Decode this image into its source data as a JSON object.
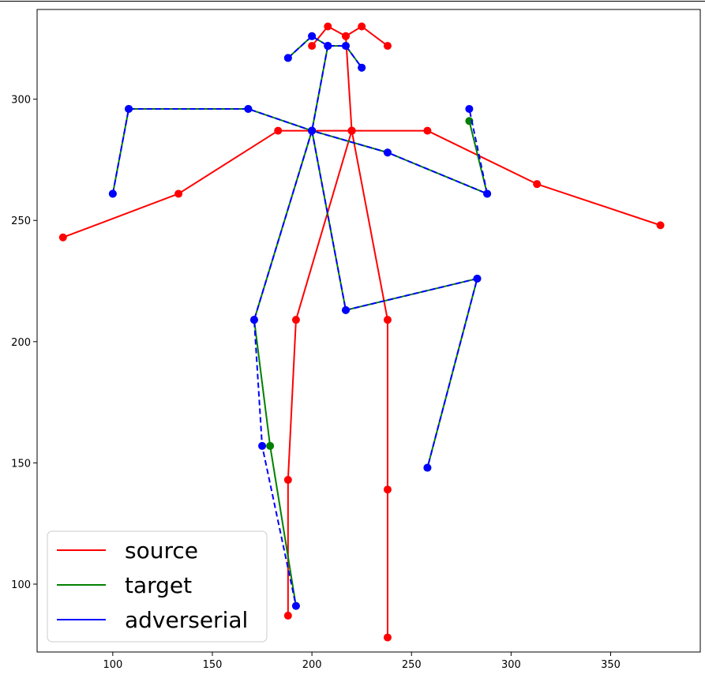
{
  "chart_data": {
    "type": "line",
    "title": "",
    "xlabel": "",
    "ylabel": "",
    "xlim": [
      62,
      395
    ],
    "ylim": [
      72,
      337
    ],
    "xticks": [
      100,
      150,
      200,
      250,
      300,
      350
    ],
    "yticks": [
      100,
      150,
      200,
      250,
      300
    ],
    "grid": false,
    "legend_position": "bottom-left",
    "series": [
      {
        "name": "source",
        "color": "#ff0000",
        "dashed": false,
        "segments": [
          [
            [
              200,
              322
            ],
            [
              208,
              330
            ],
            [
              217,
              326
            ],
            [
              225,
              330
            ],
            [
              238,
              322
            ]
          ],
          [
            [
              217,
              326
            ],
            [
              220,
              287
            ]
          ],
          [
            [
              75,
              243
            ],
            [
              133,
              261
            ],
            [
              183,
              287
            ],
            [
              220,
              287
            ],
            [
              258,
              287
            ],
            [
              313,
              265
            ],
            [
              375,
              248
            ]
          ],
          [
            [
              220,
              287
            ],
            [
              192,
              209
            ],
            [
              188,
              143
            ],
            [
              188,
              87
            ]
          ],
          [
            [
              220,
              287
            ],
            [
              238,
              209
            ],
            [
              238,
              139
            ],
            [
              238,
              78
            ]
          ]
        ]
      },
      {
        "name": "target",
        "color": "#008000",
        "dashed": false,
        "segments": [
          [
            [
              188,
              317
            ],
            [
              200,
              326
            ],
            [
              208,
              322
            ],
            [
              217,
              322
            ],
            [
              225,
              313
            ]
          ],
          [
            [
              208,
              322
            ],
            [
              200,
              287
            ]
          ],
          [
            [
              100,
              261
            ],
            [
              108,
              296
            ],
            [
              168,
              296
            ],
            [
              200,
              287
            ],
            [
              238,
              278
            ],
            [
              288,
              261
            ],
            [
              279,
              291
            ]
          ],
          [
            [
              200,
              287
            ],
            [
              171,
              209
            ],
            [
              179,
              157
            ],
            [
              192,
              91
            ]
          ],
          [
            [
              200,
              287
            ],
            [
              217,
              213
            ],
            [
              283,
              226
            ],
            [
              258,
              148
            ]
          ]
        ]
      },
      {
        "name": "adverserial",
        "color": "#0000ff",
        "dashed": true,
        "segments": [
          [
            [
              188,
              317
            ],
            [
              200,
              326
            ],
            [
              208,
              322
            ],
            [
              217,
              322
            ],
            [
              225,
              313
            ]
          ],
          [
            [
              208,
              322
            ],
            [
              200,
              287
            ]
          ],
          [
            [
              100,
              261
            ],
            [
              108,
              296
            ],
            [
              168,
              296
            ],
            [
              200,
              287
            ],
            [
              238,
              278
            ],
            [
              288,
              261
            ],
            [
              279,
              296
            ]
          ],
          [
            [
              200,
              287
            ],
            [
              171,
              209
            ],
            [
              175,
              157
            ],
            [
              192,
              91
            ]
          ],
          [
            [
              200,
              287
            ],
            [
              217,
              213
            ],
            [
              283,
              226
            ],
            [
              258,
              148
            ]
          ]
        ]
      }
    ]
  },
  "legend": {
    "items": [
      "source",
      "target",
      "adverserial"
    ],
    "colors": [
      "#ff0000",
      "#008000",
      "#0000ff"
    ]
  }
}
